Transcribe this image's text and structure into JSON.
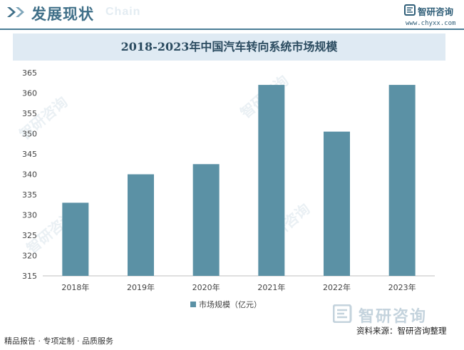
{
  "header": {
    "title": "发展现状",
    "watermark": "Chain",
    "brand_name": "智研咨询",
    "brand_url": "www.chyxx.com"
  },
  "chart_data": {
    "type": "bar",
    "title": "2018-2023年中国汽车转向系统市场规模",
    "categories": [
      "2018年",
      "2019年",
      "2020年",
      "2021年",
      "2022年",
      "2023年"
    ],
    "series": [
      {
        "name": "市场规模（亿元）",
        "values": [
          333,
          340,
          342.5,
          362,
          350.5,
          362
        ]
      }
    ],
    "ylim": [
      315,
      365
    ],
    "yticks": [
      315,
      320,
      325,
      330,
      335,
      340,
      345,
      350,
      355,
      360,
      365
    ],
    "grid": false,
    "legend": "bottom",
    "bar_color": "#5b91a5"
  },
  "footer": {
    "left": "精品报告 · 专项定制 · 品质服务",
    "source": "资料来源：智研咨询整理",
    "brand": "智研咨询"
  },
  "watermark_text": "智研咨询",
  "colors": {
    "accent": "#3f6f88",
    "band": "#dfeaf3",
    "bar": "#5b91a5"
  }
}
